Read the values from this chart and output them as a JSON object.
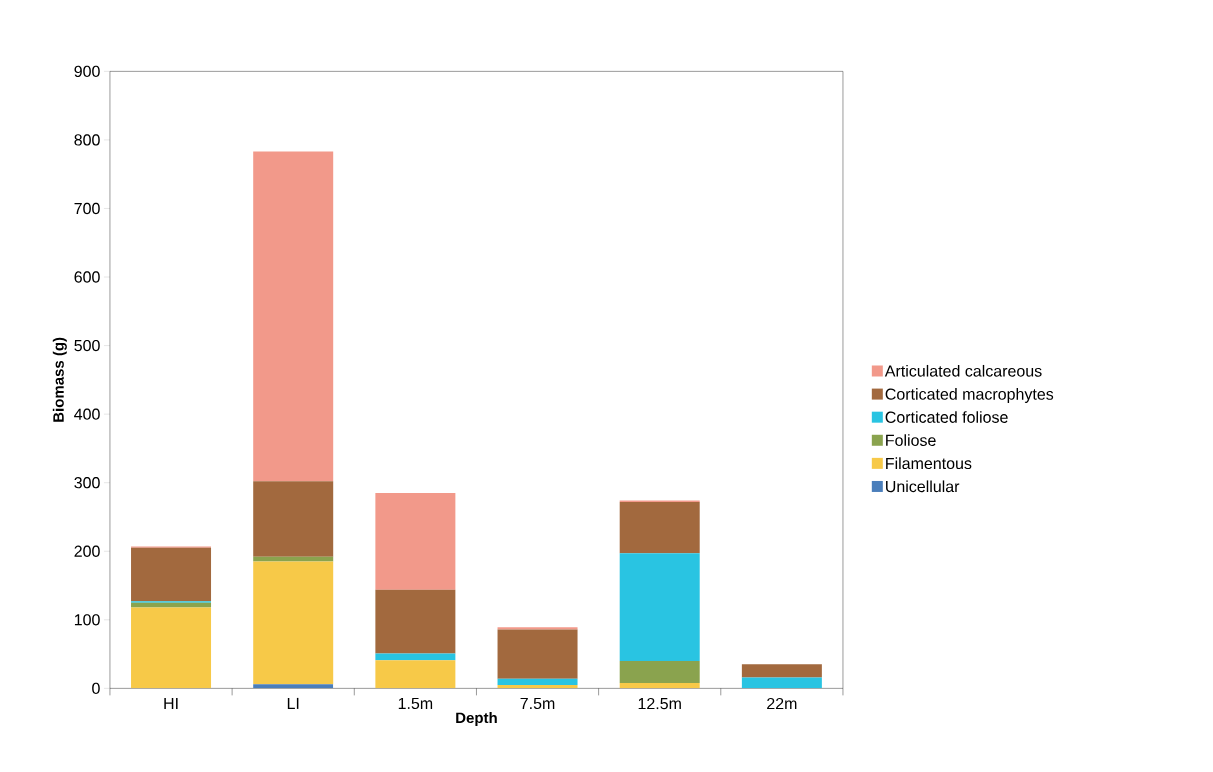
{
  "chart_data": {
    "type": "bar",
    "stacked": true,
    "xlabel": "Depth",
    "ylabel": "Biomass (g)",
    "categories": [
      "HI",
      "LI",
      "1.5m",
      "7.5m",
      "12.5m",
      "22m"
    ],
    "series": [
      {
        "name": "Unicellular",
        "color": "#4a7ebb",
        "values": [
          0,
          6,
          0,
          0,
          0,
          0
        ]
      },
      {
        "name": "Filamentous",
        "color": "#f7c948",
        "values": [
          118,
          179,
          41,
          5,
          8,
          0
        ]
      },
      {
        "name": "Foliose",
        "color": "#8aa34e",
        "values": [
          7,
          7,
          0,
          0,
          32,
          0
        ]
      },
      {
        "name": "Corticated foliose",
        "color": "#29c4e2",
        "values": [
          2,
          0,
          10,
          9,
          157,
          16
        ]
      },
      {
        "name": "Corticated macrophytes",
        "color": "#a2693e",
        "values": [
          78,
          110,
          93,
          72,
          75,
          19
        ]
      },
      {
        "name": "Articulated calcareous",
        "color": "#f2998a",
        "values": [
          2,
          481,
          141,
          3,
          2,
          0
        ]
      }
    ],
    "ylim": [
      0,
      900
    ],
    "yticks": [
      0,
      100,
      200,
      300,
      400,
      500,
      600,
      700,
      800,
      900
    ],
    "grid": false,
    "legend": "right"
  }
}
